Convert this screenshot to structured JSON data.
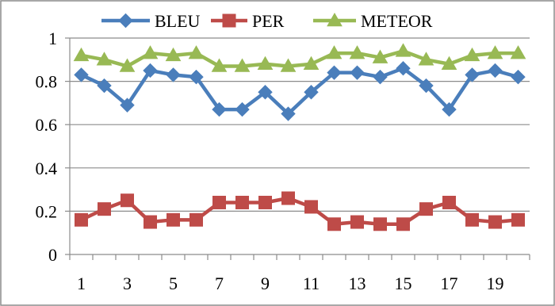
{
  "chart_data": {
    "type": "line",
    "title": "",
    "xlabel": "",
    "ylabel": "",
    "x": [
      1,
      2,
      3,
      4,
      5,
      6,
      7,
      8,
      9,
      10,
      11,
      12,
      13,
      14,
      15,
      16,
      17,
      18,
      19,
      20
    ],
    "x_tick_labels": [
      "1",
      "3",
      "5",
      "7",
      "9",
      "11",
      "13",
      "15",
      "17",
      "19"
    ],
    "y_tick_labels": [
      "0",
      "0.2",
      "0.4",
      "0.6",
      "0.8",
      "1"
    ],
    "ylim": [
      0,
      1
    ],
    "grid": "horizontal",
    "legend_position": "top",
    "series": [
      {
        "name": "BLEU",
        "color": "#4a7ebb",
        "marker": "diamond",
        "values": [
          0.83,
          0.78,
          0.69,
          0.85,
          0.83,
          0.82,
          0.67,
          0.67,
          0.75,
          0.65,
          0.75,
          0.84,
          0.84,
          0.82,
          0.86,
          0.78,
          0.67,
          0.83,
          0.85,
          0.82
        ]
      },
      {
        "name": "PER",
        "color": "#be4b48",
        "marker": "square",
        "values": [
          0.16,
          0.21,
          0.25,
          0.15,
          0.16,
          0.16,
          0.24,
          0.24,
          0.24,
          0.26,
          0.22,
          0.14,
          0.15,
          0.14,
          0.14,
          0.21,
          0.24,
          0.16,
          0.15,
          0.16
        ]
      },
      {
        "name": "METEOR",
        "color": "#98b954",
        "marker": "triangle",
        "values": [
          0.92,
          0.9,
          0.87,
          0.93,
          0.92,
          0.93,
          0.87,
          0.87,
          0.88,
          0.87,
          0.88,
          0.93,
          0.93,
          0.91,
          0.94,
          0.9,
          0.88,
          0.92,
          0.93,
          0.93
        ]
      }
    ]
  }
}
